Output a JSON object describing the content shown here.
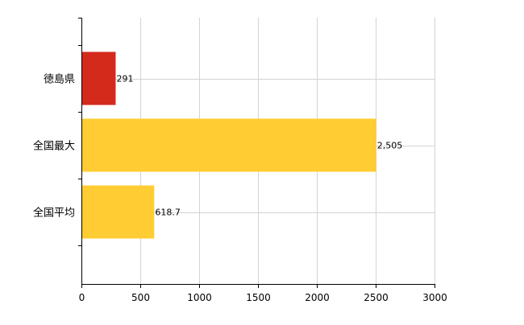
{
  "chart_data": {
    "type": "bar",
    "orientation": "horizontal",
    "categories": [
      "徳島県",
      "全国最大",
      "全国平均"
    ],
    "values": [
      291,
      2505,
      618.7
    ],
    "value_labels": [
      "291",
      "2,505",
      "618.7"
    ],
    "bar_colors": [
      "#d42a1c",
      "#ffcc33",
      "#ffcc33"
    ],
    "xlim": [
      0,
      3000
    ],
    "xticks": [
      0,
      500,
      1000,
      1500,
      2000,
      2500,
      3000
    ],
    "xtick_labels": [
      "0",
      "500",
      "1000",
      "1500",
      "2000",
      "2500",
      "3000"
    ],
    "grid": true,
    "grid_color": "#d3d3d3",
    "axis_color": "#000000",
    "title": "",
    "xlabel": "",
    "ylabel": ""
  }
}
